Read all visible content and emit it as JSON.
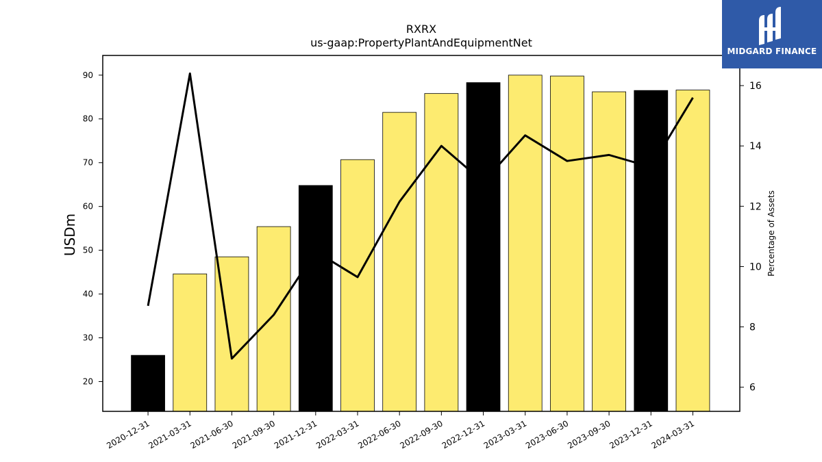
{
  "chart_data": {
    "type": "bar",
    "title": "RXRX",
    "subtitle": "us-gaap:PropertyPlantAndEquipmentNet",
    "ylabel": "USDm",
    "y2label": "Percentage of Assets",
    "ylim": [
      13.2,
      94.5
    ],
    "y2lim": [
      5.2,
      17.0
    ],
    "yticks": [
      20,
      30,
      40,
      50,
      60,
      70,
      80,
      90
    ],
    "y2ticks": [
      6,
      8,
      10,
      12,
      14,
      16
    ],
    "categories": [
      "2020-12-31",
      "2021-03-31",
      "2021-06-30",
      "2021-09-30",
      "2021-12-31",
      "2022-03-31",
      "2022-06-30",
      "2022-09-30",
      "2022-12-31",
      "2023-03-31",
      "2023-06-30",
      "2023-09-30",
      "2023-12-31",
      "2024-03-31"
    ],
    "series": [
      {
        "kind": "bar",
        "values": [
          26.0,
          44.6,
          48.5,
          55.4,
          64.8,
          70.7,
          81.5,
          85.8,
          88.3,
          90.0,
          89.8,
          86.2,
          86.5,
          86.6
        ],
        "highlight": [
          true,
          false,
          false,
          false,
          true,
          false,
          false,
          false,
          true,
          false,
          false,
          false,
          true,
          false
        ],
        "color": "#fdeb70",
        "highlight_color": "#000000"
      },
      {
        "kind": "line",
        "axis": "right",
        "values": [
          8.7,
          16.4,
          6.95,
          8.4,
          10.5,
          9.65,
          12.15,
          14.0,
          12.8,
          14.35,
          13.5,
          13.7,
          13.3,
          15.6
        ],
        "color": "#000000"
      }
    ],
    "grid": false,
    "legend": "none"
  },
  "logo": {
    "text": "MIDGARD FINANCE",
    "icon": "midgard-logo-icon",
    "background": "#2f5aa8"
  }
}
